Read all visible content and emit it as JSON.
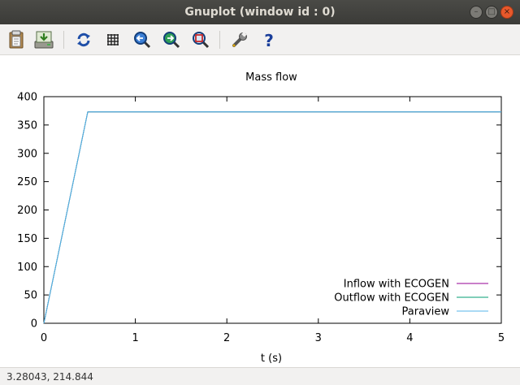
{
  "window": {
    "title": "Gnuplot (window id : 0)"
  },
  "toolbar": {
    "buttons": [
      {
        "name": "copy-to-clipboard-button",
        "icon": "clipboard-icon"
      },
      {
        "name": "export-button",
        "icon": "save-drive-icon"
      },
      {
        "name": "replot-button",
        "icon": "refresh-icon"
      },
      {
        "name": "toggle-grid-button",
        "icon": "grid-icon"
      },
      {
        "name": "previous-zoom-button",
        "icon": "zoom-previous-icon"
      },
      {
        "name": "next-zoom-button",
        "icon": "zoom-next-icon"
      },
      {
        "name": "autoscale-button",
        "icon": "zoom-autoscale-icon"
      },
      {
        "name": "preferences-button",
        "icon": "wrench-icon"
      },
      {
        "name": "help-button",
        "icon": "help-icon"
      }
    ]
  },
  "status": {
    "coordinates": "3.28043,  214.844"
  },
  "colors": {
    "inflow": "#940094",
    "outflow": "#009e73",
    "paraview": "#56b4e9"
  },
  "chart_data": {
    "type": "line",
    "title": "Mass flow",
    "xlabel": "t (s)",
    "ylabel": "",
    "xlim": [
      0,
      5
    ],
    "ylim": [
      0,
      400
    ],
    "xticks": [
      "0",
      "1",
      "2",
      "3",
      "4",
      "5"
    ],
    "yticks": [
      "0",
      "50",
      "100",
      "150",
      "200",
      "250",
      "300",
      "350",
      "400"
    ],
    "legend_position": "bottom-right",
    "grid": false,
    "series": [
      {
        "name": "Inflow with ECOGEN",
        "x": [
          0,
          0.48,
          5
        ],
        "y": [
          0,
          373,
          373
        ]
      },
      {
        "name": "Outflow with ECOGEN",
        "x": [
          0,
          0.48,
          5
        ],
        "y": [
          0,
          373,
          373
        ]
      },
      {
        "name": "Paraview",
        "x": [
          0,
          0.48,
          5
        ],
        "y": [
          0,
          373,
          373
        ]
      }
    ]
  }
}
